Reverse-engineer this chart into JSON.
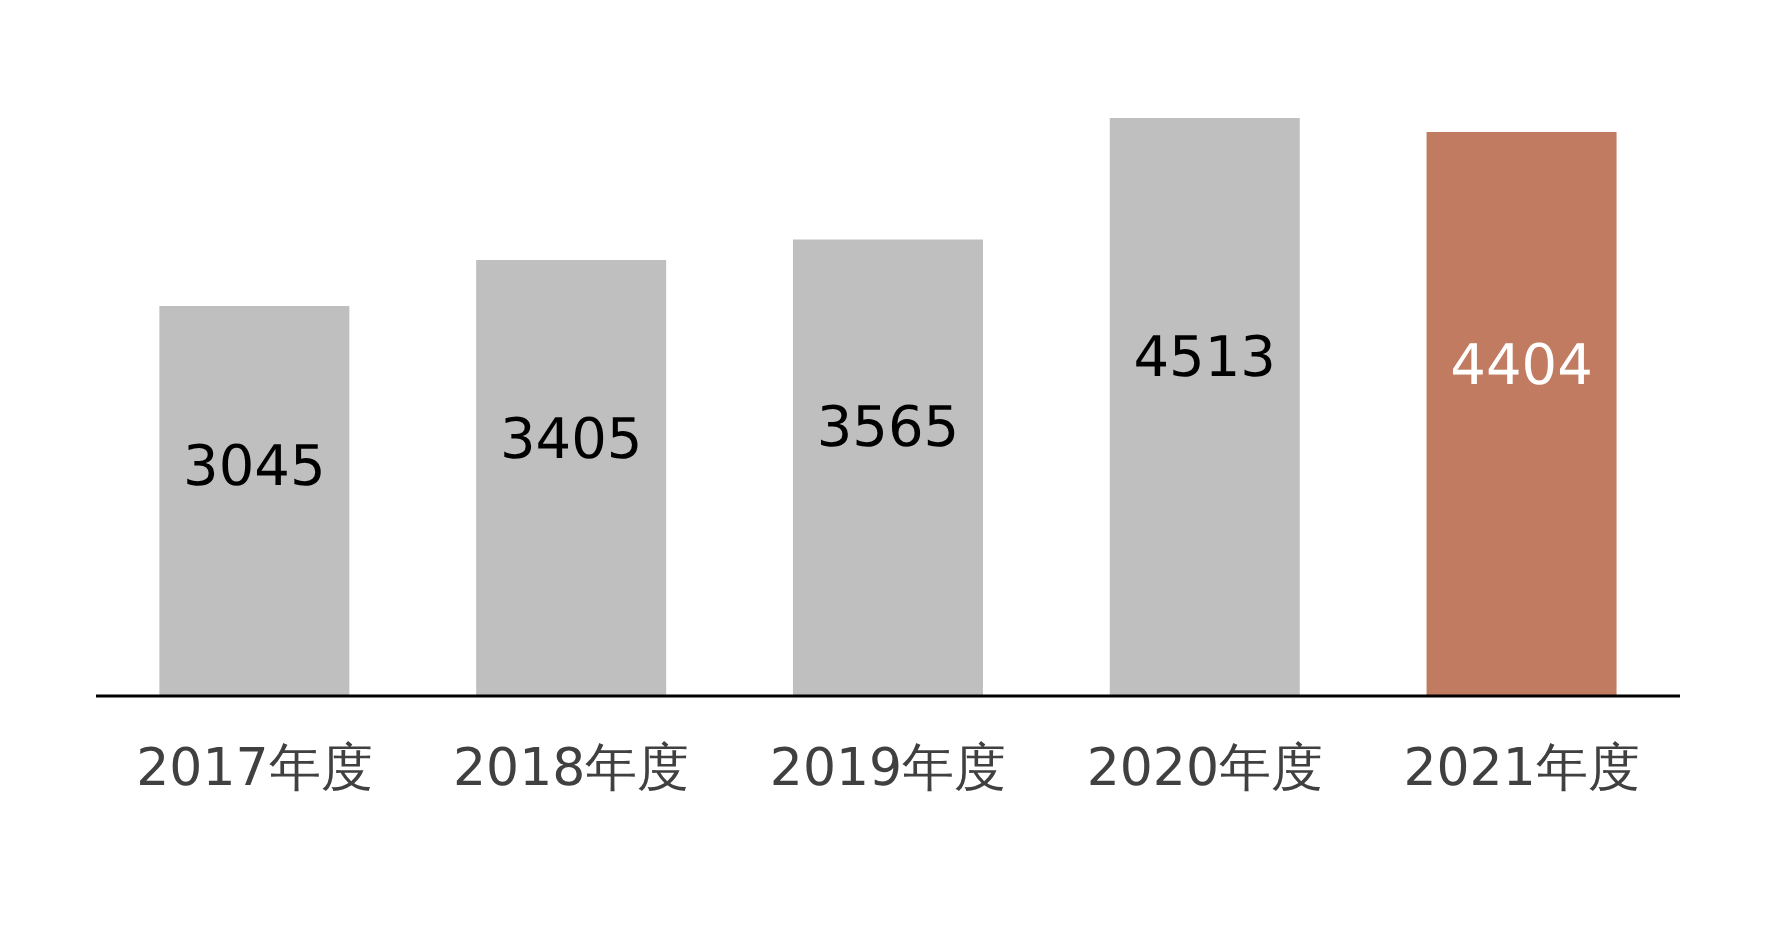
{
  "chart_data": {
    "type": "bar",
    "categories": [
      "2017年度",
      "2018年度",
      "2019年度",
      "2020年度",
      "2021年度"
    ],
    "values": [
      3045,
      3405,
      3565,
      4513,
      4404
    ],
    "colors": [
      "#bfbfbf",
      "#bfbfbf",
      "#bfbfbf",
      "#bfbfbf",
      "#c07b60"
    ],
    "data_labels": true
  }
}
